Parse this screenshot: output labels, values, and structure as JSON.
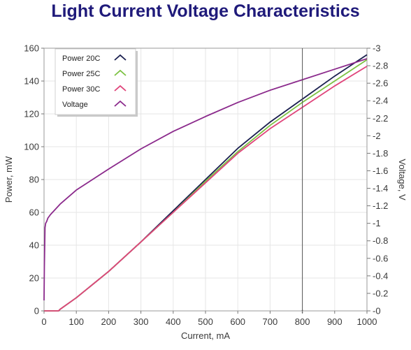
{
  "chart_data": {
    "type": "line",
    "title": "Light Current Voltage Characteristics",
    "xlabel": "Current, mA",
    "ylabel": "Power, mW",
    "y2label": "Voltage, V",
    "xlim": [
      0,
      1000
    ],
    "ylim": [
      0,
      160
    ],
    "y2lim": [
      0,
      3
    ],
    "x_ticks": [
      "0",
      "100",
      "200",
      "300",
      "400",
      "500",
      "600",
      "700",
      "800",
      "900",
      "1000"
    ],
    "y_ticks": [
      "0",
      "20",
      "40",
      "60",
      "80",
      "100",
      "120",
      "140",
      "160"
    ],
    "y2_ticks": [
      "0",
      "0.2",
      "0.4",
      "0.6",
      "0.8",
      "1",
      "1.2",
      "1.4",
      "1.6",
      "1.8",
      "2",
      "2.2",
      "2.4",
      "2.6",
      "2.8",
      "3"
    ],
    "grid": true,
    "legend_position": "top-left",
    "marker_line_x": 800,
    "series": [
      {
        "name": "Power 20C",
        "axis": "left",
        "color": "#1a1f4f",
        "x": [
          0,
          20,
          45,
          50,
          100,
          200,
          300,
          400,
          500,
          600,
          700,
          800,
          900,
          1000
        ],
        "y": [
          0,
          0,
          0,
          1,
          8,
          24,
          42,
          61,
          80,
          99,
          115,
          129,
          143,
          156
        ]
      },
      {
        "name": "Power 25C",
        "axis": "left",
        "color": "#7cc242",
        "x": [
          0,
          20,
          45,
          50,
          100,
          200,
          300,
          400,
          500,
          600,
          700,
          800,
          900,
          1000
        ],
        "y": [
          0,
          0,
          0,
          1,
          8,
          24,
          42,
          60,
          79,
          97,
          113,
          127,
          140,
          153
        ]
      },
      {
        "name": "Power 30C",
        "axis": "left",
        "color": "#e0457b",
        "x": [
          0,
          20,
          45,
          50,
          100,
          200,
          300,
          400,
          500,
          600,
          700,
          800,
          900,
          1000
        ],
        "y": [
          0,
          0,
          0,
          1,
          8,
          24,
          42,
          60,
          78,
          96,
          111,
          124,
          137,
          149
        ]
      },
      {
        "name": "Voltage",
        "axis": "right",
        "color": "#8b2a8c",
        "x": [
          0,
          1,
          3,
          5,
          8,
          12,
          20,
          50,
          100,
          200,
          300,
          400,
          500,
          600,
          700,
          800,
          900,
          1000
        ],
        "y": [
          0.12,
          0.5,
          0.95,
          1.0,
          1.02,
          1.06,
          1.1,
          1.22,
          1.38,
          1.62,
          1.85,
          2.05,
          2.22,
          2.38,
          2.52,
          2.64,
          2.76,
          2.88
        ]
      }
    ]
  }
}
